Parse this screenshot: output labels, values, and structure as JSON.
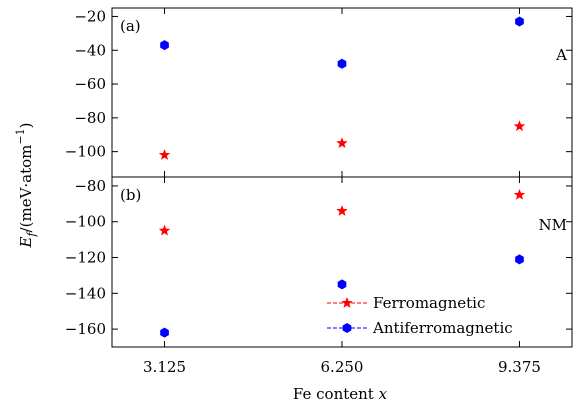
{
  "chart_data": [
    {
      "type": "scatter",
      "panel_label": "(a)",
      "annotation": "A",
      "categories": [
        "3.125",
        "6.250",
        "9.375"
      ],
      "x": [
        3.125,
        6.25,
        9.375
      ],
      "ylim": [
        -115,
        -15
      ],
      "yticks": [
        -100,
        -80,
        -60,
        -40,
        -20
      ],
      "ytick_labels": [
        "−100",
        "−80",
        "−60",
        "−40",
        "−20"
      ],
      "series": [
        {
          "name": "Ferromagnetic",
          "marker": "star",
          "color": "#ff0000",
          "values": [
            -102,
            -95,
            -85
          ]
        },
        {
          "name": "Antiferromagnetic",
          "marker": "hexagon",
          "color": "#0000ff",
          "values": [
            -37,
            -48,
            -23
          ]
        }
      ]
    },
    {
      "type": "scatter",
      "panel_label": "(b)",
      "annotation": "NM",
      "categories": [
        "3.125",
        "6.250",
        "9.375"
      ],
      "x": [
        3.125,
        6.25,
        9.375
      ],
      "ylim": [
        -170,
        -75
      ],
      "yticks": [
        -160,
        -140,
        -120,
        -100,
        -80
      ],
      "ytick_labels": [
        "−160",
        "−140",
        "−120",
        "−100",
        "−80"
      ],
      "series": [
        {
          "name": "Ferromagnetic",
          "marker": "star",
          "color": "#ff0000",
          "values": [
            -105,
            -94,
            -85
          ]
        },
        {
          "name": "Antiferromagnetic",
          "marker": "hexagon",
          "color": "#0000ff",
          "values": [
            -162,
            -135,
            -121
          ]
        }
      ]
    }
  ],
  "xaxis": {
    "label": "Fe content (x)",
    "label_main": "Fe content ",
    "label_var": "x",
    "ticks": [
      3.125,
      6.25,
      9.375
    ],
    "tick_labels": [
      "3.125",
      "6.250",
      "9.375"
    ],
    "xlim": [
      2.2,
      10.3
    ]
  },
  "yaxis": {
    "label": "Ef/(meV·atom−1)",
    "label_E": "E",
    "label_sub": "f",
    "label_mid": "/(meV·atom",
    "label_sup": "−1",
    "label_end": ")"
  },
  "legend": {
    "position": "lower-right of panel (b)",
    "entries": [
      {
        "label": "Ferromagnetic",
        "marker": "star",
        "color": "#ff0000",
        "line": "dashed"
      },
      {
        "label": "Antiferromagnetic",
        "marker": "hexagon",
        "color": "#0000ff",
        "line": "dashed"
      }
    ]
  }
}
